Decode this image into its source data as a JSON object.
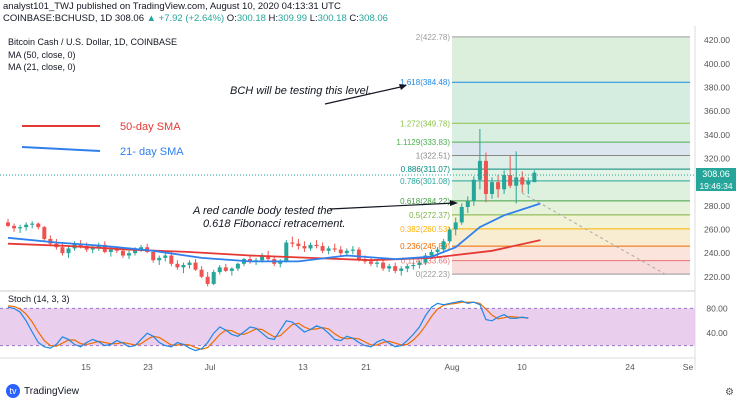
{
  "header": {
    "line1": "analyst101_TWJ published on TradingView.com, August 10, 2020 04:13:31 UTC",
    "symbol": "COINBASE:BCHUSD, 1D",
    "last": "308.06",
    "change": "▲ +7.92 (+2.64%)",
    "o_label": "O:",
    "o": "300.18",
    "h_label": "H:",
    "h": "309.99",
    "l_label": "L:",
    "l": "300.18",
    "c_label": "C:",
    "c": "308.06"
  },
  "legend": {
    "title": "Bitcoin Cash / U.S. Dollar, 1D, COINBASE",
    "ma50": "MA (50, close, 0)",
    "ma21": "MA (21, close, 0)"
  },
  "footer": {
    "brand": "TradingView"
  },
  "chart_data": [
    {
      "type": "candlestick",
      "name": "price",
      "y_ticks": [
        220,
        240,
        260,
        280,
        300,
        320,
        340,
        360,
        380,
        400,
        420
      ],
      "ylim": [
        208,
        432
      ],
      "x_tick_labels": [
        "15",
        "23",
        "Jul",
        "13",
        "21",
        "Aug",
        "10",
        "24",
        "Se"
      ],
      "last_price": "308.06",
      "countdown": "19:46:34",
      "colors": {
        "up": "#26a69a",
        "down": "#ef5350",
        "ma50": "#e53935",
        "ma21": "#2f80ed"
      },
      "candles": [
        [
          266,
          269,
          262,
          263
        ],
        [
          263,
          265,
          258,
          261
        ],
        [
          261,
          264,
          257,
          262
        ],
        [
          262,
          266,
          259,
          264
        ],
        [
          264,
          267,
          261,
          265
        ],
        [
          265,
          266,
          260,
          262
        ],
        [
          262,
          263,
          250,
          252
        ],
        [
          252,
          255,
          246,
          248
        ],
        [
          248,
          252,
          243,
          245
        ],
        [
          245,
          248,
          238,
          240
        ],
        [
          240,
          246,
          236,
          244
        ],
        [
          244,
          250,
          242,
          248
        ],
        [
          248,
          251,
          244,
          246
        ],
        [
          246,
          249,
          241,
          243
        ],
        [
          243,
          247,
          240,
          245
        ],
        [
          245,
          249,
          242,
          247
        ],
        [
          247,
          250,
          240,
          241
        ],
        [
          241,
          244,
          237,
          243
        ],
        [
          243,
          246,
          240,
          242
        ],
        [
          242,
          244,
          236,
          238
        ],
        [
          238,
          242,
          235,
          240
        ],
        [
          240,
          245,
          238,
          243
        ],
        [
          243,
          247,
          241,
          245
        ],
        [
          245,
          248,
          240,
          241
        ],
        [
          241,
          242,
          232,
          234
        ],
        [
          234,
          238,
          230,
          236
        ],
        [
          236,
          240,
          233,
          238
        ],
        [
          238,
          241,
          229,
          231
        ],
        [
          231,
          234,
          226,
          228
        ],
        [
          228,
          232,
          223,
          230
        ],
        [
          230,
          234,
          227,
          232
        ],
        [
          232,
          235,
          225,
          226
        ],
        [
          226,
          229,
          219,
          220
        ],
        [
          220,
          224,
          212,
          214
        ],
        [
          214,
          226,
          213,
          224
        ],
        [
          224,
          230,
          222,
          228
        ],
        [
          228,
          231,
          224,
          225
        ],
        [
          225,
          228,
          221,
          227
        ],
        [
          227,
          232,
          225,
          231
        ],
        [
          231,
          236,
          229,
          235
        ],
        [
          235,
          238,
          231,
          233
        ],
        [
          233,
          236,
          230,
          234
        ],
        [
          234,
          240,
          232,
          238
        ],
        [
          238,
          242,
          233,
          235
        ],
        [
          235,
          238,
          229,
          231
        ],
        [
          231,
          235,
          228,
          233
        ],
        [
          233,
          251,
          232,
          249
        ],
        [
          249,
          254,
          245,
          248
        ],
        [
          248,
          252,
          243,
          246
        ],
        [
          246,
          250,
          241,
          244
        ],
        [
          244,
          249,
          242,
          247
        ],
        [
          247,
          251,
          244,
          246
        ],
        [
          246,
          249,
          240,
          242
        ],
        [
          242,
          246,
          239,
          244
        ],
        [
          244,
          248,
          241,
          243
        ],
        [
          243,
          246,
          238,
          240
        ],
        [
          240,
          244,
          237,
          242
        ],
        [
          242,
          246,
          239,
          243
        ],
        [
          243,
          245,
          233,
          235
        ],
        [
          235,
          238,
          231,
          233
        ],
        [
          233,
          237,
          229,
          231
        ],
        [
          231,
          235,
          228,
          232
        ],
        [
          232,
          236,
          225,
          227
        ],
        [
          227,
          231,
          224,
          229
        ],
        [
          229,
          232,
          223,
          225
        ],
        [
          225,
          229,
          221,
          227
        ],
        [
          227,
          231,
          224,
          229
        ],
        [
          229,
          232,
          226,
          230
        ],
        [
          230,
          234,
          227,
          232
        ],
        [
          232,
          240,
          230,
          238
        ],
        [
          238,
          243,
          235,
          241
        ],
        [
          241,
          245,
          237,
          243
        ],
        [
          243,
          252,
          240,
          250
        ],
        [
          250,
          262,
          248,
          260
        ],
        [
          260,
          270,
          255,
          266
        ],
        [
          266,
          282,
          264,
          279
        ],
        [
          279,
          288,
          274,
          284
        ],
        [
          284,
          305,
          280,
          302
        ],
        [
          302,
          345,
          294,
          318
        ],
        [
          318,
          325,
          283,
          290
        ],
        [
          290,
          304,
          286,
          300
        ],
        [
          300,
          306,
          287,
          294
        ],
        [
          294,
          310,
          290,
          306
        ],
        [
          306,
          322,
          295,
          297
        ],
        [
          297,
          326,
          282,
          304
        ],
        [
          304,
          309,
          291,
          298
        ],
        [
          298,
          304,
          290,
          301
        ],
        [
          300,
          310,
          300,
          308
        ]
      ],
      "ma50": [
        [
          0,
          248
        ],
        [
          10,
          246
        ],
        [
          20,
          243
        ],
        [
          30,
          241
        ],
        [
          40,
          238
        ],
        [
          50,
          236
        ],
        [
          60,
          234
        ],
        [
          70,
          236
        ],
        [
          80,
          242
        ],
        [
          88,
          251
        ]
      ],
      "ma21": [
        [
          0,
          253
        ],
        [
          8,
          249
        ],
        [
          16,
          246
        ],
        [
          24,
          242
        ],
        [
          32,
          236
        ],
        [
          40,
          233
        ],
        [
          48,
          233
        ],
        [
          56,
          238
        ],
        [
          64,
          235
        ],
        [
          70,
          237
        ],
        [
          74,
          245
        ],
        [
          78,
          262
        ],
        [
          82,
          272
        ],
        [
          88,
          282
        ]
      ],
      "fib_levels": [
        {
          "label": "0(222.23)",
          "value": 222.23
        },
        {
          "label": "0.114(233.66)",
          "value": 233.66
        },
        {
          "label": "0.236(245.89)",
          "value": 245.89
        },
        {
          "label": "0.382(260.53)",
          "value": 260.53
        },
        {
          "label": "0.5(272.37)",
          "value": 272.37
        },
        {
          "label": "0.618(284.22)",
          "value": 284.22
        },
        {
          "label": "0.786(301.08)",
          "value": 301.08
        },
        {
          "label": "0.886(311.07)",
          "value": 311.07
        },
        {
          "label": "1(322.51)",
          "value": 322.51
        },
        {
          "label": "1.1129(333.83)",
          "value": 333.83
        },
        {
          "label": "1.272(349.78)",
          "value": 349.78
        },
        {
          "label": "1.618(384.48)",
          "value": 384.48
        },
        {
          "label": "2(422.78)",
          "value": 422.78
        }
      ],
      "annotations": [
        {
          "text": "BCH will be testing this level."
        },
        {
          "text": "A red candle body tested the"
        },
        {
          "text": "0.618 Fibonacci retracement."
        },
        {
          "text": "50-day SMA"
        },
        {
          "text": "21- day SMA"
        }
      ]
    },
    {
      "type": "line",
      "name": "stoch",
      "title": "Stoch (14, 3, 3)",
      "y_ticks": [
        40,
        80
      ],
      "ylim": [
        0,
        100
      ],
      "k": [
        82,
        80,
        74,
        60,
        42,
        25,
        18,
        16,
        22,
        34,
        30,
        22,
        18,
        25,
        30,
        26,
        20,
        22,
        28,
        24,
        18,
        20,
        30,
        40,
        35,
        25,
        20,
        18,
        25,
        22,
        16,
        12,
        15,
        25,
        40,
        50,
        45,
        38,
        35,
        42,
        50,
        48,
        40,
        32,
        30,
        45,
        60,
        58,
        50,
        42,
        46,
        52,
        48,
        40,
        30,
        28,
        35,
        32,
        25,
        20,
        18,
        26,
        30,
        24,
        18,
        20,
        28,
        38,
        50,
        68,
        82,
        88,
        86,
        88,
        90,
        92,
        88,
        90,
        86,
        62,
        60,
        66,
        70,
        64,
        64,
        66,
        64
      ],
      "d": [
        84,
        83,
        79,
        71,
        58,
        42,
        28,
        20,
        19,
        24,
        29,
        29,
        23,
        22,
        24,
        27,
        25,
        23,
        23,
        25,
        23,
        21,
        23,
        30,
        35,
        33,
        27,
        21,
        21,
        22,
        21,
        17,
        14,
        17,
        27,
        38,
        45,
        44,
        39,
        38,
        42,
        47,
        46,
        40,
        34,
        36,
        45,
        54,
        56,
        50,
        46,
        47,
        49,
        47,
        39,
        33,
        31,
        32,
        31,
        26,
        21,
        21,
        25,
        27,
        24,
        21,
        22,
        29,
        39,
        52,
        67,
        79,
        85,
        87,
        88,
        90,
        90,
        90,
        88,
        79,
        69,
        63,
        65,
        67,
        66,
        65,
        65
      ]
    }
  ]
}
